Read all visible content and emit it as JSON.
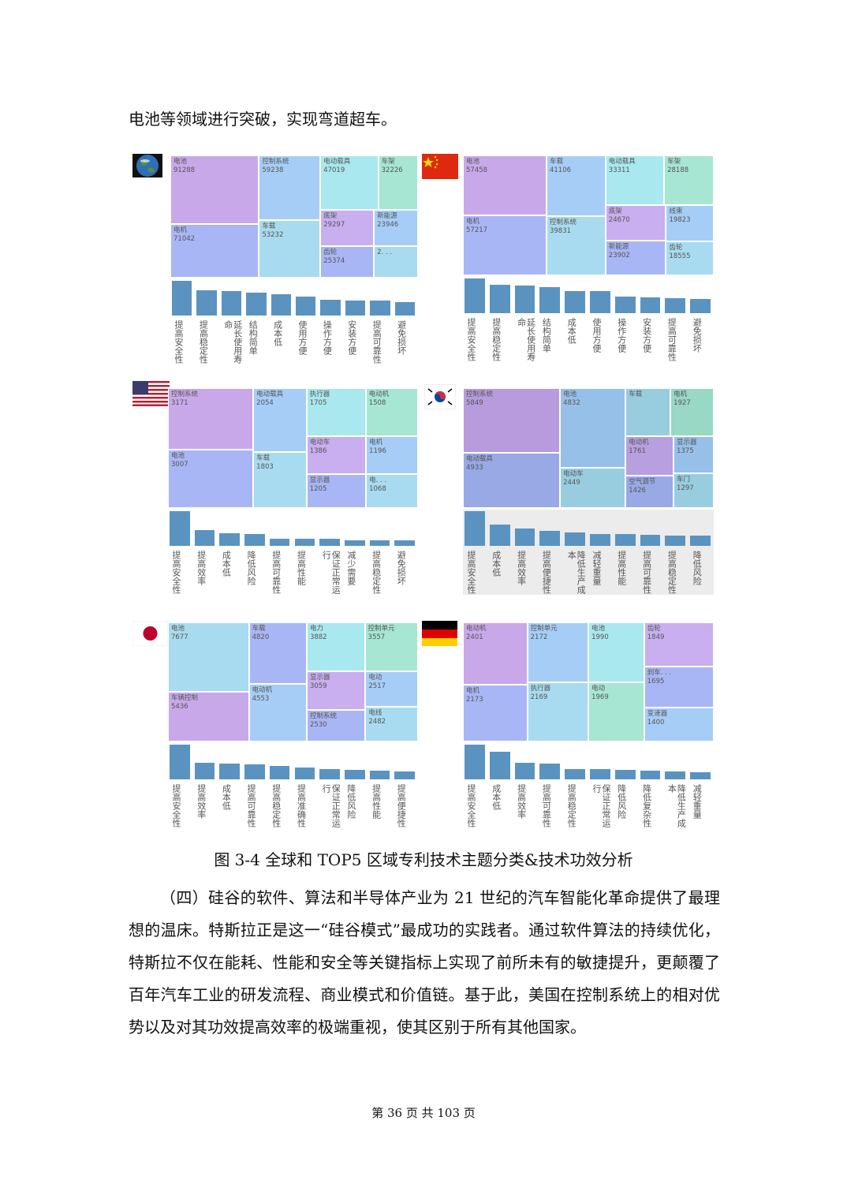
{
  "intro": "电池等领域进行突破，实现弯道超车。",
  "figure": {
    "bar_color": "#5b93c0",
    "panels": [
      {
        "treemap": [
          {
            "label": "电池",
            "value": 91288,
            "color": "#c9a8ea"
          },
          {
            "label": "电机",
            "value": 71042,
            "color": "#a9b6f5"
          },
          {
            "label": "控制系统",
            "value": 59238,
            "color": "#a6cdf6"
          },
          {
            "label": "车载",
            "value": 53232,
            "color": "#a8dbef"
          },
          {
            "label": "电动载具",
            "value": 47019,
            "color": "#a8e8ee"
          },
          {
            "label": "车架",
            "value": 32226,
            "color": "#a6e6d2"
          },
          {
            "label": "底架",
            "value": 29297,
            "color": "#c9aef0"
          },
          {
            "label": "齿轮",
            "value": 25374,
            "color": "#a9b6f5"
          },
          {
            "label": "新能源",
            "value": 23946,
            "color": "#a6cdf6"
          },
          {
            "label": "2. . .",
            "value": 21000,
            "color": "#a8dbef",
            "value_hidden": true
          }
        ],
        "bars": {
          "categories": [
            "提高安全性",
            "提高稳定性",
            "延长使用寿命",
            "结构简单",
            "成本低",
            "使用方便",
            "操作方便",
            "安装方便",
            "提高可靠性",
            "避免损坏"
          ],
          "values": [
            38,
            28,
            27,
            25,
            23,
            21,
            17,
            16,
            16,
            15
          ]
        }
      },
      {
        "treemap": [
          {
            "label": "电池",
            "value": 57458,
            "color": "#c9a8ea"
          },
          {
            "label": "电机",
            "value": 57217,
            "color": "#a9b6f5"
          },
          {
            "label": "车载",
            "value": 41106,
            "color": "#a6cdf6"
          },
          {
            "label": "控制系统",
            "value": 39831,
            "color": "#a8dbef"
          },
          {
            "label": "电动载具",
            "value": 33311,
            "color": "#a8e8ee"
          },
          {
            "label": "车架",
            "value": 28188,
            "color": "#a6e6d2"
          },
          {
            "label": "底架",
            "value": 24670,
            "color": "#c9aef0"
          },
          {
            "label": "新能源",
            "value": 23902,
            "color": "#a9b6f5"
          },
          {
            "label": "线束",
            "value": 19823,
            "color": "#a6cdf6"
          },
          {
            "label": "齿轮",
            "value": 18555,
            "color": "#a8dbef"
          }
        ],
        "bars": {
          "categories": [
            "提高安全性",
            "提高稳定性",
            "延长使用寿命",
            "结构简单",
            "成本低",
            "使用方便",
            "操作方便",
            "安装方便",
            "提高可靠性",
            "避免损坏"
          ],
          "values": [
            43,
            35,
            34,
            32,
            27,
            27,
            21,
            20,
            19,
            18
          ]
        }
      },
      {
        "treemap": [
          {
            "label": "控制系统",
            "value": 3171,
            "color": "#c9a8ea"
          },
          {
            "label": "电池",
            "value": 3007,
            "color": "#a9b6f5"
          },
          {
            "label": "电动载具",
            "value": 2054,
            "color": "#a6cdf6"
          },
          {
            "label": "车载",
            "value": 1803,
            "color": "#a8dbef"
          },
          {
            "label": "执行器",
            "value": 1705,
            "color": "#a8e8ee"
          },
          {
            "label": "电动机",
            "value": 1508,
            "color": "#a6e6d2"
          },
          {
            "label": "电动车",
            "value": 1386,
            "color": "#c9aef0"
          },
          {
            "label": "显示器",
            "value": 1205,
            "color": "#a9b6f5"
          },
          {
            "label": "电机",
            "value": 1196,
            "color": "#a6cdf6"
          },
          {
            "label": "电. . .",
            "value": 1068,
            "color": "#a8dbef"
          }
        ],
        "bars": {
          "categories": [
            "提高安全性",
            "提高效率",
            "成本低",
            "降低风险",
            "提高可靠性",
            "提高性能",
            "保证正常运行",
            "减少需要",
            "提高稳定性",
            "避免损坏"
          ],
          "values": [
            43,
            20,
            16,
            15,
            9,
            9,
            9,
            7,
            7,
            7
          ]
        }
      },
      {
        "treemap": [
          {
            "label": "控制系统",
            "value": 5849,
            "color": "#b89bdc"
          },
          {
            "label": "电动载具",
            "value": 4933,
            "color": "#98a9e6"
          },
          {
            "label": "电池",
            "value": 4832,
            "color": "#96c0e8"
          },
          {
            "label": "电动车",
            "value": 2449,
            "color": "#98cde0"
          },
          {
            "label": "车载",
            "value": 2000,
            "color": "#98cde0",
            "value_hidden": true
          },
          {
            "label": "电机",
            "value": 1927,
            "color": "#98d8c4"
          },
          {
            "label": "电动机",
            "value": 1761,
            "color": "#b89fe0"
          },
          {
            "label": "空气调节",
            "value": 1426,
            "color": "#98a9e6"
          },
          {
            "label": "显示器",
            "value": 1375,
            "color": "#96c0e8"
          },
          {
            "label": "车门",
            "value": 1297,
            "color": "#98cde0"
          }
        ],
        "bars": {
          "categories": [
            "提高安全性",
            "成本低",
            "提高效率",
            "提高便捷性",
            "降低生产成本",
            "减轻重量",
            "提高性能",
            "提高可靠性",
            "提高稳定性",
            "降低风险"
          ],
          "values": [
            45,
            28,
            22,
            19,
            17,
            15,
            15,
            14,
            13,
            13
          ]
        },
        "bar_background": "#ececec"
      },
      {
        "treemap": [
          {
            "label": "电池",
            "value": 7677,
            "color": "#a8dbef"
          },
          {
            "label": "车辆控制",
            "value": 5436,
            "color": "#c9a8ea"
          },
          {
            "label": "车载",
            "value": 4820,
            "color": "#a9b6f5"
          },
          {
            "label": "电动机",
            "value": 4553,
            "color": "#a6cdf6"
          },
          {
            "label": "电力",
            "value": 3882,
            "color": "#a8e8ee"
          },
          {
            "label": "控制单元",
            "value": 3557,
            "color": "#a6e6d2"
          },
          {
            "label": "显示器",
            "value": 3059,
            "color": "#c9aef0"
          },
          {
            "label": "控制系统",
            "value": 2530,
            "color": "#a9b6f5"
          },
          {
            "label": "电动",
            "value": 2517,
            "color": "#a6cdf6"
          },
          {
            "label": "电线",
            "value": 2482,
            "color": "#a8dbef"
          }
        ],
        "bars": {
          "categories": [
            "提高安全性",
            "提高效率",
            "成本低",
            "提高可靠性",
            "提高稳定性",
            "提高准确性",
            "保证正常运行",
            "降低风险",
            "提高性能",
            "提高便捷性"
          ],
          "values": [
            43,
            21,
            20,
            19,
            17,
            15,
            13,
            12,
            11,
            10
          ]
        }
      },
      {
        "treemap": [
          {
            "label": "电动机",
            "value": 2401,
            "color": "#c9a8ea"
          },
          {
            "label": "电机",
            "value": 2173,
            "color": "#a9b6f5"
          },
          {
            "label": "控制单元",
            "value": 2172,
            "color": "#a6cdf6"
          },
          {
            "label": "执行器",
            "value": 2169,
            "color": "#a8dbef"
          },
          {
            "label": "电池",
            "value": 1990,
            "color": "#a8e8ee"
          },
          {
            "label": "电动",
            "value": 1969,
            "color": "#a6e6d2"
          },
          {
            "label": "齿轮",
            "value": 1849,
            "color": "#c9aef0"
          },
          {
            "label": "刹车. . .",
            "value": 1695,
            "color": "#a9b6f5"
          },
          {
            "label": "变速器",
            "value": 1400,
            "color": "#a6cdf6"
          }
        ],
        "bars": {
          "categories": [
            "提高安全性",
            "成本低",
            "提高效率",
            "提高可靠性",
            "提高稳定性",
            "保证正常运行",
            "降低风险",
            "降低复杂性",
            "降低生产成本",
            "减轻重量"
          ],
          "values": [
            44,
            35,
            21,
            20,
            13,
            13,
            12,
            11,
            10,
            9
          ]
        }
      }
    ],
    "caption": "图 3-4  全球和 TOP5 区域专利技术主题分类&技术功效分析"
  },
  "body": "（四）硅谷的软件、算法和半导体产业为 21 世纪的汽车智能化革命提供了最理想的温床。特斯拉正是这一“硅谷模式”最成功的实践者。通过软件算法的持续优化，特斯拉不仅在能耗、性能和安全等关键指标上实现了前所未有的敏捷提升，更颠覆了百年汽车工业的研发流程、商业模式和价值链。基于此，美国在控制系统上的相对优势以及对其功效提高效率的极端重视，使其区别于所有其他国家。",
  "footer": "第 36 页 共 103 页"
}
